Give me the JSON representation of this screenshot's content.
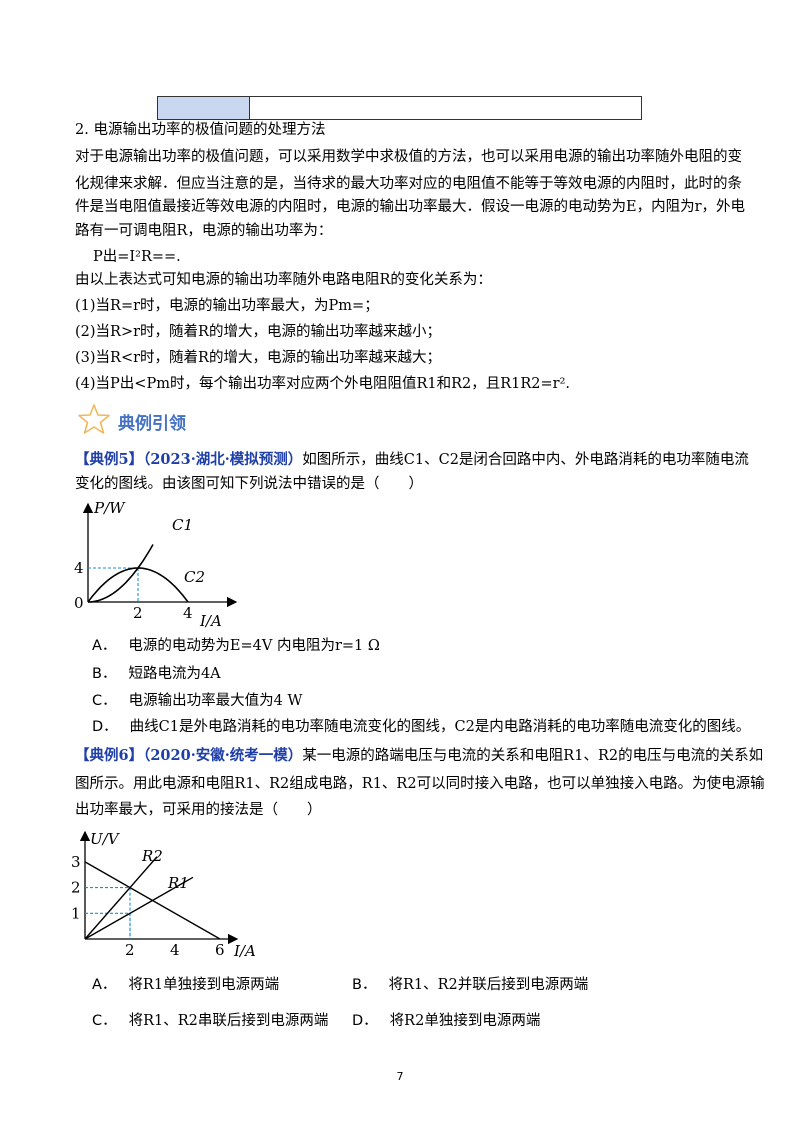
{
  "top_table": {
    "cells": [
      "",
      ""
    ]
  },
  "section2": {
    "heading": "2. 电源输出功率的极值问题的处理方法",
    "para_lines": [
      "对于电源输出功率的极值问题，可以采用数学中求极值的方法，也可以采用电源的输出功率随外电阻的变",
      "化规律来求解．但应当注意的是，当待求的最大功率对应的电阻值不能等于等效电源的内阻时，此时的条",
      "件是当电阻值最接近等效电源的内阻时，电源的输出功率最大．假设一电源的电动势为E，内阻为r，外电",
      "路有一可调电阻R，电源的输出功率为："
    ],
    "formula": "P出=I²R==.",
    "intro": "由以上表达式可知电源的输出功率随外电路电阻R的变化关系为：",
    "cases": [
      "(1)当R=r时，电源的输出功率最大，为Pm=；",
      "(2)当R>r时，随着R的增大，电源的输出功率越来越小；",
      "(3)当R<r时，随着R的增大，电源的输出功率越来越大；",
      "(4)当P出<Pm时，每个输出功率对应两个外电阻阻值R1和R2，且R1R2=r²."
    ]
  },
  "section_header": {
    "title": "典例引领",
    "icon": "star-outline-icon",
    "color": "#4472c4"
  },
  "example5": {
    "tag": "【典例5】",
    "source": "（2023·湖北·模拟预测）",
    "stem_line1": "如图所示，曲线C1、C2是闭合回路中内、外电路消耗的电功率随电流",
    "stem_line2": "变化的图线。由该图可知下列说法中错误的是（　　）",
    "options": [
      {
        "label": "A．",
        "text": "电源的电动势为E=4V 内电阻为r=1 Ω"
      },
      {
        "label": "B．",
        "text": "短路电流为4A"
      },
      {
        "label": "C．",
        "text": "电源输出功率最大值为4 W"
      },
      {
        "label": "D．",
        "text": "曲线C1是外电路消耗的电功率随电流变化的图线，C2是内电路消耗的电功率随电流变化的图线。"
      }
    ]
  },
  "example6": {
    "tag": "【典例6】",
    "source": "（2020·安徽·统考一模）",
    "stem_line1": "某一电源的路端电压与电流的关系和电阻R1、R2的电压与电流的关系如",
    "stem_line2": "图所示。用此电源和电阻R1、R2组成电路，R1、R2可以同时接入电路，也可以单独接入电路。为使电源输",
    "stem_line3": "出功率最大，可采用的接法是（　　）",
    "options": [
      {
        "label": "A．",
        "text": "将R1单独接到电源两端"
      },
      {
        "label": "B．",
        "text": "将R1、R2并联后接到电源两端"
      },
      {
        "label": "C．",
        "text": "将R1、R2串联后接到电源两端"
      },
      {
        "label": "D．",
        "text": "将R2单独接到电源两端"
      }
    ]
  },
  "chart_data": [
    {
      "type": "line",
      "xlabel": "I/A",
      "ylabel": "P/W",
      "x_ticks": [
        "2",
        "4"
      ],
      "y_ticks": [
        "4"
      ],
      "origin_label": "0",
      "xlim": [
        0,
        5
      ],
      "ylim": [
        0,
        8
      ],
      "series": [
        {
          "name": "C1",
          "x": [
            0,
            0.5,
            1,
            1.5,
            2,
            2.5,
            3
          ],
          "y": [
            0,
            0.25,
            1,
            2.25,
            4,
            6.25,
            9
          ]
        },
        {
          "name": "C2",
          "x": [
            0,
            0.5,
            1,
            1.5,
            2,
            2.5,
            3,
            3.5,
            4
          ],
          "y": [
            0,
            1.75,
            3,
            3.75,
            4,
            3.75,
            3,
            1.75,
            0
          ]
        }
      ],
      "guides": {
        "x": 2,
        "y": 4,
        "style": "dashed",
        "color": "#1a8fd6"
      }
    },
    {
      "type": "line",
      "xlabel": "I/A",
      "ylabel": "U/V",
      "x_ticks": [
        "2",
        "4",
        "6"
      ],
      "y_ticks": [
        "1",
        "2",
        "3"
      ],
      "xlim": [
        0,
        6.5
      ],
      "ylim": [
        0,
        3.5
      ],
      "series": [
        {
          "name": "",
          "x": [
            0,
            6
          ],
          "y": [
            3,
            0
          ]
        },
        {
          "name": "R2",
          "x": [
            0,
            3.2
          ],
          "y": [
            0,
            3.2
          ]
        },
        {
          "name": "R1",
          "x": [
            0,
            4.8
          ],
          "y": [
            0,
            2.4
          ]
        }
      ],
      "guides": {
        "points": [
          [
            2,
            2
          ],
          [
            2,
            1
          ]
        ],
        "style": "dashed",
        "color": "#1a8fd6"
      }
    }
  ],
  "page_number": "7"
}
